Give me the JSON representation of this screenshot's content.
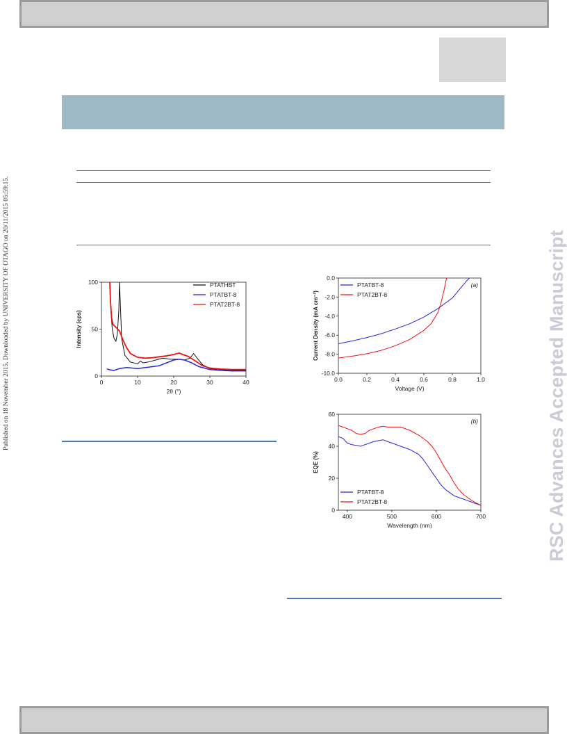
{
  "side_note": "Published on 18 November 2015. Downloaded by UNIVERSITY OF OTAGO on 20/11/2015 05:59:15.",
  "watermark": "RSC Advances Accepted Manuscript",
  "colors": {
    "black": "#111111",
    "blue": "#2222dd",
    "red": "#ee1111",
    "banner": "#9db9c5",
    "watermark": "#c9ccd6"
  },
  "chart_data": [
    {
      "type": "line",
      "title": "",
      "xlabel": "2θ (°)",
      "ylabel": "Intensity (cps)",
      "xlim": [
        0,
        40
      ],
      "ylim": [
        0,
        100
      ],
      "xticks": [
        "0",
        "10",
        "20",
        "30",
        "40"
      ],
      "yticks": [
        "0",
        "50",
        "100"
      ],
      "legend": "top-right",
      "series": [
        {
          "name": "PTATHBT",
          "color": "#111111",
          "points": [
            [
              2.3,
              100
            ],
            [
              2.6,
              70
            ],
            [
              3.0,
              50
            ],
            [
              3.5,
              40
            ],
            [
              4.0,
              37
            ],
            [
              4.4,
              45
            ],
            [
              4.8,
              70
            ],
            [
              5.0,
              100
            ],
            [
              5.2,
              80
            ],
            [
              5.6,
              40
            ],
            [
              6.5,
              22
            ],
            [
              8,
              15
            ],
            [
              10,
              13
            ],
            [
              10.8,
              16
            ],
            [
              11.5,
              14
            ],
            [
              13,
              15
            ],
            [
              15,
              17
            ],
            [
              17,
              19
            ],
            [
              19,
              18
            ],
            [
              21,
              18
            ],
            [
              23,
              17
            ],
            [
              24.5,
              19
            ],
            [
              25.5,
              24
            ],
            [
              26.5,
              19
            ],
            [
              28,
              12
            ],
            [
              30,
              8
            ],
            [
              33,
              7
            ],
            [
              36,
              6
            ],
            [
              40,
              6
            ]
          ]
        },
        {
          "name": "PTATBT-8",
          "color": "#2222dd",
          "points": [
            [
              1.5,
              7.5
            ],
            [
              2.5,
              6.5
            ],
            [
              3.5,
              6
            ],
            [
              5,
              8
            ],
            [
              7,
              9
            ],
            [
              10,
              8
            ],
            [
              13,
              9.5
            ],
            [
              16,
              11
            ],
            [
              18,
              14
            ],
            [
              20,
              17
            ],
            [
              21.5,
              18
            ],
            [
              23,
              17
            ],
            [
              25,
              14
            ],
            [
              27,
              10
            ],
            [
              30,
              7
            ],
            [
              33,
              6
            ],
            [
              36,
              5.5
            ],
            [
              40,
              5.5
            ]
          ]
        },
        {
          "name": "PTAT2BT-8",
          "color": "#ee1111",
          "points": [
            [
              2.3,
              100
            ],
            [
              2.5,
              80
            ],
            [
              2.8,
              62
            ],
            [
              3.2,
              55
            ],
            [
              4,
              52
            ],
            [
              5,
              48
            ],
            [
              6,
              38
            ],
            [
              7,
              30
            ],
            [
              8,
              24
            ],
            [
              10,
              20
            ],
            [
              12,
              19
            ],
            [
              14,
              19.5
            ],
            [
              16,
              20.5
            ],
            [
              18,
              21.5
            ],
            [
              20,
              23
            ],
            [
              21.5,
              24.5
            ],
            [
              22.5,
              23
            ],
            [
              24,
              21
            ],
            [
              26,
              16
            ],
            [
              28,
              11
            ],
            [
              30,
              8.5
            ],
            [
              33,
              7.5
            ],
            [
              36,
              7
            ],
            [
              40,
              7
            ]
          ]
        }
      ]
    },
    {
      "type": "line",
      "title": "",
      "panel_label": "(a)",
      "xlabel": "Voltage (V)",
      "ylabel": "Current Density (mA cm⁻²)",
      "xlim": [
        0.0,
        1.0
      ],
      "ylim": [
        -10.0,
        0.0
      ],
      "xticks": [
        "0.0",
        "0.2",
        "0.4",
        "0.6",
        "0.8",
        "1.0"
      ],
      "yticks": [
        "0.0",
        "-2.0",
        "-4.0",
        "-6.0",
        "-8.0",
        "-10.0"
      ],
      "legend": "top-left",
      "series": [
        {
          "name": "PTATBT-8",
          "color": "#2222dd",
          "points": [
            [
              0,
              -6.9
            ],
            [
              0.1,
              -6.6
            ],
            [
              0.2,
              -6.25
            ],
            [
              0.3,
              -5.85
            ],
            [
              0.4,
              -5.35
            ],
            [
              0.5,
              -4.8
            ],
            [
              0.6,
              -4.1
            ],
            [
              0.7,
              -3.2
            ],
            [
              0.8,
              -2.1
            ],
            [
              0.9,
              -0.3
            ],
            [
              0.92,
              0
            ]
          ]
        },
        {
          "name": "PTAT2BT-8",
          "color": "#ee1111",
          "points": [
            [
              0,
              -8.4
            ],
            [
              0.1,
              -8.2
            ],
            [
              0.2,
              -7.95
            ],
            [
              0.3,
              -7.6
            ],
            [
              0.4,
              -7.1
            ],
            [
              0.5,
              -6.45
            ],
            [
              0.6,
              -5.5
            ],
            [
              0.65,
              -4.8
            ],
            [
              0.7,
              -3.6
            ],
            [
              0.72,
              -2.6
            ],
            [
              0.74,
              -1.4
            ],
            [
              0.755,
              -0.3
            ],
            [
              0.76,
              0
            ]
          ]
        }
      ]
    },
    {
      "type": "line",
      "title": "",
      "panel_label": "(b)",
      "xlabel": "Wavelength (nm)",
      "ylabel": "EQE (%)",
      "xlim": [
        380,
        700
      ],
      "ylim": [
        0,
        60
      ],
      "xticks": [
        "400",
        "500",
        "600",
        "700"
      ],
      "yticks": [
        "0",
        "20",
        "40",
        "60"
      ],
      "legend": "bottom-left",
      "series": [
        {
          "name": "PTATBT-8",
          "color": "#2222dd",
          "points": [
            [
              380,
              46
            ],
            [
              390,
              45
            ],
            [
              400,
              42
            ],
            [
              410,
              41
            ],
            [
              420,
              40.5
            ],
            [
              430,
              40
            ],
            [
              440,
              41
            ],
            [
              450,
              42
            ],
            [
              460,
              43
            ],
            [
              470,
              43.5
            ],
            [
              480,
              44
            ],
            [
              490,
              43
            ],
            [
              500,
              42
            ],
            [
              520,
              40
            ],
            [
              540,
              38
            ],
            [
              560,
              35
            ],
            [
              570,
              32
            ],
            [
              580,
              28
            ],
            [
              590,
              24
            ],
            [
              600,
              20
            ],
            [
              610,
              16
            ],
            [
              620,
              13
            ],
            [
              630,
              11
            ],
            [
              640,
              9
            ],
            [
              650,
              8
            ],
            [
              660,
              7
            ],
            [
              670,
              6
            ],
            [
              680,
              5
            ],
            [
              690,
              4
            ],
            [
              700,
              3
            ]
          ]
        },
        {
          "name": "PTAT2BT-8",
          "color": "#ee1111",
          "points": [
            [
              380,
              53
            ],
            [
              390,
              52
            ],
            [
              400,
              51
            ],
            [
              410,
              50
            ],
            [
              420,
              48
            ],
            [
              430,
              47.5
            ],
            [
              440,
              48
            ],
            [
              450,
              50
            ],
            [
              460,
              51
            ],
            [
              470,
              52
            ],
            [
              480,
              52.5
            ],
            [
              490,
              52
            ],
            [
              500,
              52
            ],
            [
              520,
              52
            ],
            [
              540,
              50
            ],
            [
              560,
              47
            ],
            [
              580,
              43
            ],
            [
              590,
              40
            ],
            [
              600,
              36
            ],
            [
              610,
              31
            ],
            [
              620,
              26
            ],
            [
              630,
              22
            ],
            [
              640,
              17
            ],
            [
              650,
              13
            ],
            [
              660,
              10
            ],
            [
              670,
              8
            ],
            [
              680,
              6
            ],
            [
              690,
              4.5
            ],
            [
              700,
              3
            ]
          ]
        }
      ]
    }
  ]
}
